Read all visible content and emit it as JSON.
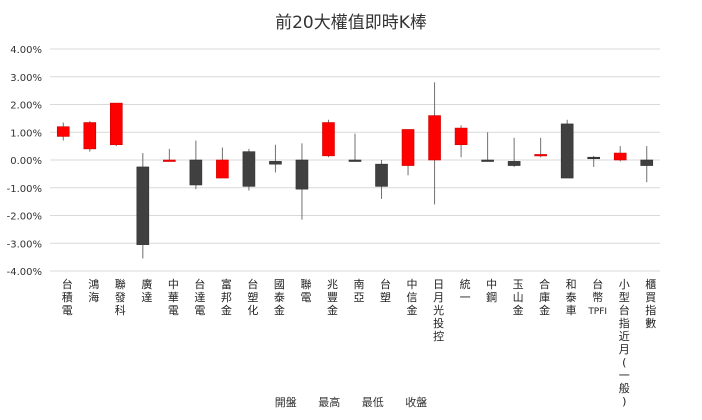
{
  "chart_data": {
    "type": "candlestick",
    "title": "前20大權值即時K棒",
    "ylim": [
      -4,
      4
    ],
    "yticks": [
      -4,
      -3,
      -2,
      -1,
      0,
      1,
      2,
      3,
      4
    ],
    "ytick_labels": [
      "-4.00%",
      "-3.00%",
      "-2.00%",
      "-1.00%",
      "0.00%",
      "1.00%",
      "2.00%",
      "3.00%",
      "4.00%"
    ],
    "legend": [
      "開盤",
      "最高",
      "最低",
      "收盤"
    ],
    "colors": {
      "up": "#ff0000",
      "down": "#404040",
      "wick": "#707070",
      "grid": "#d9d9d9"
    },
    "categories": [
      "台積電",
      "鴻海",
      "聯發科",
      "廣達",
      "中華電",
      "台達電",
      "富邦金",
      "台塑化",
      "國泰金",
      "聯電",
      "兆豐金",
      "南亞",
      "台塑",
      "中信金",
      "日月光投控",
      "統一",
      "中鋼",
      "玉山金",
      "合庫金",
      "和泰車",
      "台幣TPFI",
      "小型台指近月(一般)",
      "櫃買指數"
    ],
    "open": [
      0.85,
      0.4,
      0.55,
      -0.25,
      -0.05,
      0.0,
      -0.65,
      0.3,
      -0.05,
      0.0,
      0.15,
      0.0,
      -0.15,
      -0.2,
      0.0,
      0.55,
      0.0,
      -0.05,
      0.15,
      1.3,
      0.1,
      0.0,
      0.0
    ],
    "high": [
      1.35,
      1.4,
      2.05,
      0.25,
      0.4,
      0.7,
      0.45,
      0.4,
      0.55,
      0.6,
      1.45,
      0.95,
      0.0,
      1.1,
      2.8,
      1.25,
      1.0,
      0.8,
      0.8,
      1.45,
      0.15,
      0.5,
      0.5
    ],
    "low": [
      0.7,
      0.3,
      0.5,
      -3.55,
      -0.05,
      -1.05,
      -0.65,
      -1.1,
      -0.45,
      -2.15,
      0.1,
      -0.05,
      -1.4,
      -0.55,
      -1.6,
      0.1,
      -0.05,
      -0.25,
      0.1,
      -0.65,
      -0.25,
      -0.05,
      -0.8
    ],
    "close": [
      1.2,
      1.35,
      2.05,
      -3.05,
      0.0,
      -0.9,
      0.0,
      -0.95,
      -0.15,
      -1.05,
      1.35,
      -0.05,
      -0.95,
      1.1,
      1.6,
      1.15,
      -0.05,
      -0.2,
      0.2,
      -0.65,
      0.05,
      0.25,
      -0.2
    ]
  }
}
